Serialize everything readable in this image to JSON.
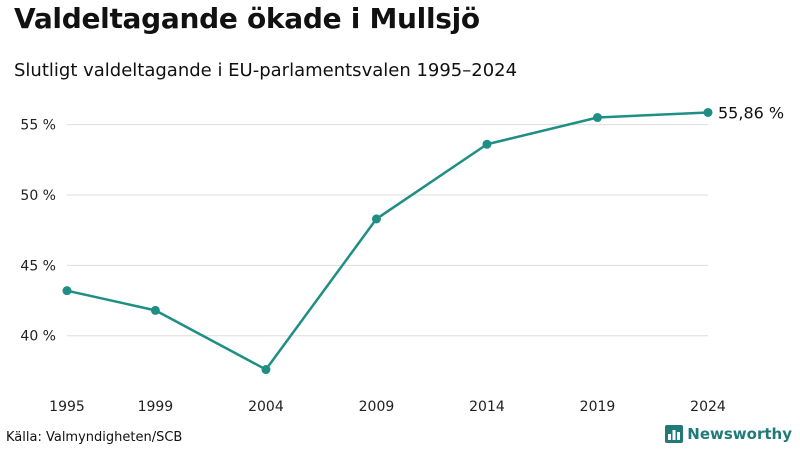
{
  "header": {
    "title": "Valdeltagande ökade i Mullsjö",
    "subtitle": "Slutligt valdeltagande i EU-parlamentsvalen 1995–2024"
  },
  "footer": {
    "source": "Källa: Valmyndigheten/SCB",
    "brand": "Newsworthy",
    "brand_icon": "bar-chart-icon"
  },
  "colors": {
    "line": "#1f8f85",
    "grid": "#dddddd",
    "brand": "#1f7a78"
  },
  "chart_data": {
    "type": "line",
    "title": "Valdeltagande ökade i Mullsjö",
    "subtitle": "Slutligt valdeltagande i EU-parlamentsvalen 1995–2024",
    "x": [
      1995,
      1999,
      2004,
      2009,
      2014,
      2019,
      2024
    ],
    "x_tick_labels": [
      "1995",
      "1999",
      "2004",
      "2009",
      "2014",
      "2019",
      "2024"
    ],
    "series": [
      {
        "name": "Valdeltagande",
        "values": [
          43.2,
          41.8,
          37.6,
          48.3,
          53.6,
          55.5,
          55.86
        ]
      }
    ],
    "y_ticks": [
      40,
      45,
      50,
      55
    ],
    "y_tick_labels": [
      "40 %",
      "45 %",
      "50 %",
      "55 %"
    ],
    "ylim": [
      36.5,
      57.1
    ],
    "xlabel": "",
    "ylabel": "",
    "grid": true,
    "annotations": [
      {
        "x": 2024,
        "text": "55,86 %"
      }
    ]
  }
}
